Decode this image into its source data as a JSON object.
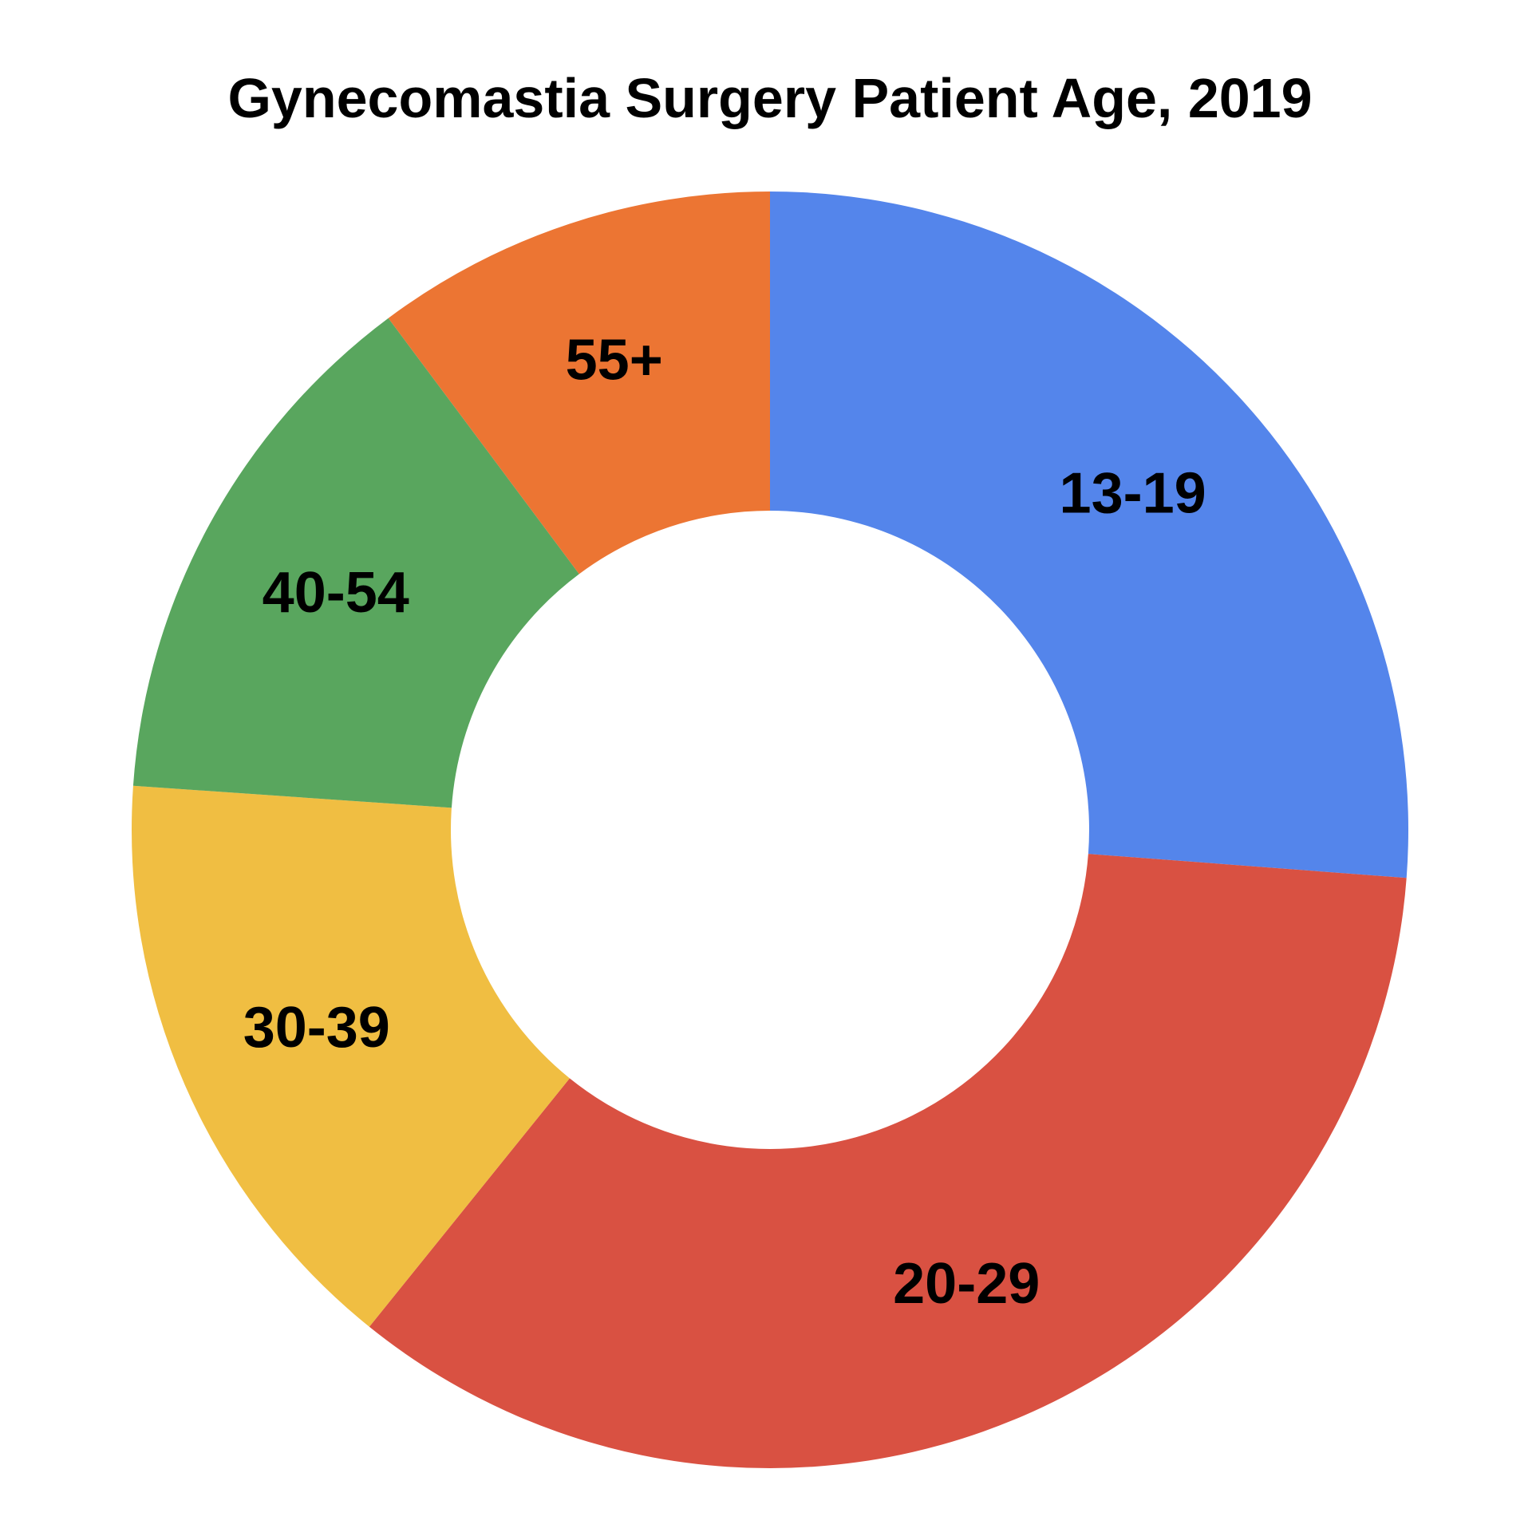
{
  "chart_data": {
    "type": "pie",
    "variant": "donut",
    "title": "Gynecomastia Surgery Patient Age, 2019",
    "categories": [
      "13-19",
      "20-29",
      "30-39",
      "40-54",
      "55+"
    ],
    "values": [
      26.2,
      34.6,
      15.3,
      13.7,
      10.2
    ],
    "value_unit": "percent of patients (estimated from slice angles)",
    "colors": [
      "#5485EB",
      "#D95142",
      "#F0BE42",
      "#59A65E",
      "#EC7533"
    ],
    "start_angle": "12 o'clock",
    "direction": "clockwise",
    "legend": "none",
    "data_labels": "category names inside slices"
  }
}
